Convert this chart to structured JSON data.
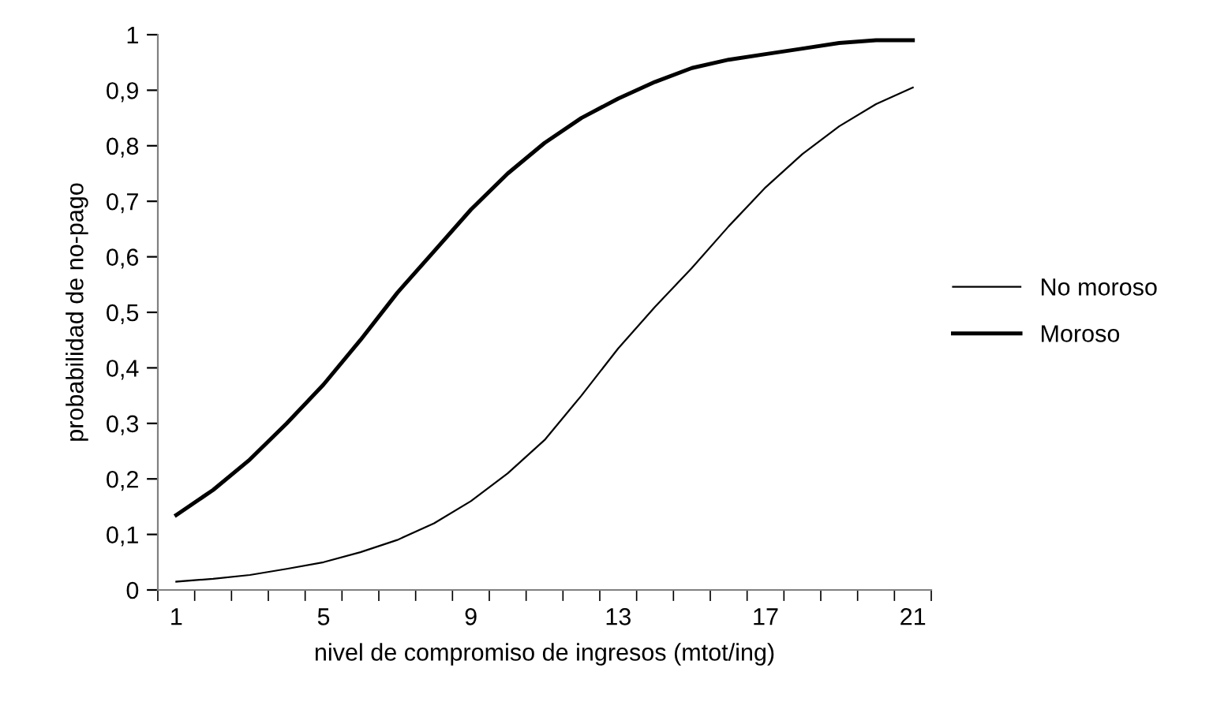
{
  "chart_data": {
    "type": "line",
    "xlabel": "nivel de compromiso de ingresos (mtot/ing)",
    "ylabel": "probabilidad de no-pago",
    "categories": [
      "1",
      null,
      null,
      null,
      "5",
      null,
      null,
      null,
      "9",
      null,
      null,
      null,
      "13",
      null,
      null,
      null,
      "17",
      null,
      null,
      null,
      "21"
    ],
    "series": [
      {
        "name": "No moroso",
        "color": "#000000",
        "values": [
          0.015,
          0.02,
          0.027,
          0.038,
          0.05,
          0.068,
          0.09,
          0.12,
          0.16,
          0.21,
          0.27,
          0.35,
          0.435,
          0.51,
          0.58,
          0.655,
          0.725,
          0.785,
          0.835,
          0.875,
          0.905
        ]
      },
      {
        "name": "Moroso",
        "color": "#000000",
        "values": [
          0.135,
          0.18,
          0.235,
          0.3,
          0.37,
          0.45,
          0.535,
          0.61,
          0.685,
          0.75,
          0.805,
          0.85,
          0.885,
          0.915,
          0.94,
          0.955,
          0.965,
          0.975,
          0.985,
          0.99,
          0.99
        ]
      }
    ],
    "ylim": [
      0,
      1
    ],
    "yticks": [
      0,
      {
        "value": 0.1,
        "label": "0,1"
      },
      {
        "value": 0.2,
        "label": "0,2"
      },
      {
        "value": 0.3,
        "label": "0,3"
      },
      {
        "value": 0.4,
        "label": "0,4"
      },
      {
        "value": 0.5,
        "label": "0,5"
      },
      {
        "value": 0.6,
        "label": "0,6"
      },
      {
        "value": 0.7,
        "label": "0,7"
      },
      {
        "value": 0.8,
        "label": "0,8"
      },
      {
        "value": 0.9,
        "label": "0,9"
      },
      1
    ],
    "grid": false,
    "legend": "right",
    "marker": "none",
    "line_style": "solid"
  }
}
